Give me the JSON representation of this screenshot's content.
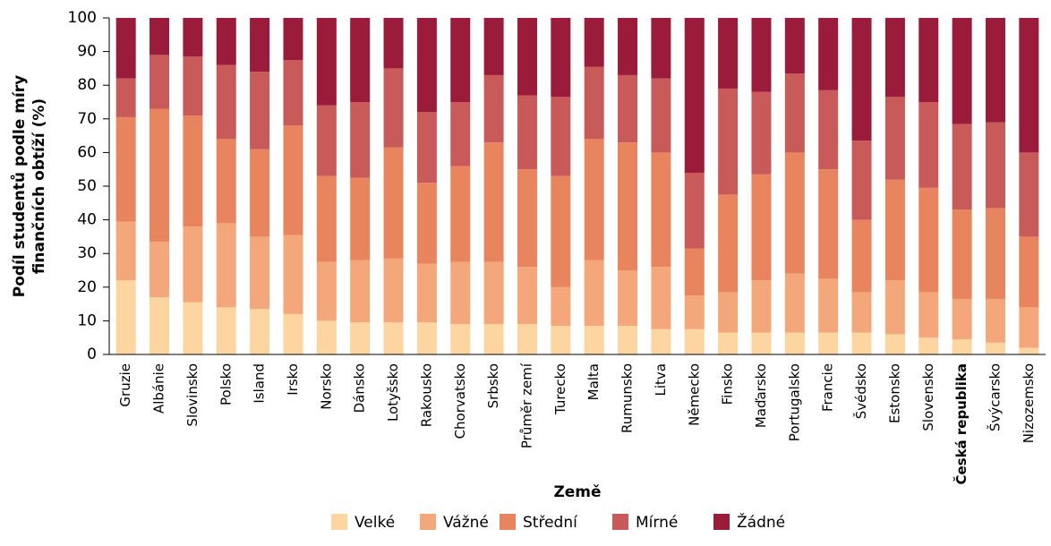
{
  "chart_data": {
    "type": "stacked_bar",
    "ylabel": [
      "Podíl studentů podle míry",
      "finančních obtíží (%)"
    ],
    "xlabel": "Země",
    "categories": [
      "Gruzie",
      "Albánie",
      "Slovinsko",
      "Polsko",
      "Island",
      "Irsko",
      "Norsko",
      "Dánsko",
      "Lotyšsko",
      "Rakousko",
      "Chorvatsko",
      "Srbsko",
      "Průměr zemí",
      "Turecko",
      "Malta",
      "Rumunsko",
      "Litva",
      "Německo",
      "Finsko",
      "Maďarsko",
      "Portugalsko",
      "Francie",
      "Švédsko",
      "Estonsko",
      "Slovensko",
      "Česká republika",
      "Švýcarsko",
      "Nizozemsko"
    ],
    "highlight": "Česká republika",
    "series": [
      {
        "name": "Velké",
        "color": "#fdd5a0",
        "values": [
          22,
          17,
          15.5,
          14,
          13.5,
          12,
          10,
          9.5,
          9.5,
          9.5,
          9,
          9,
          9,
          8.5,
          8.5,
          8.5,
          7.5,
          7.5,
          6.5,
          6.5,
          6.5,
          6.5,
          6.5,
          6,
          5,
          4.5,
          3.5,
          2
        ]
      },
      {
        "name": "Vážné",
        "color": "#f4a77a",
        "values": [
          17.5,
          16.5,
          22.5,
          25,
          21.5,
          23.5,
          17.5,
          18.5,
          19,
          17.5,
          18.5,
          18.5,
          17,
          11.5,
          19.5,
          16.5,
          18.5,
          10,
          12,
          15.5,
          17.5,
          16,
          12,
          16,
          13.5,
          12,
          13,
          12
        ]
      },
      {
        "name": "Střední",
        "color": "#e8845e",
        "values": [
          31,
          39.5,
          33,
          25,
          26,
          32.5,
          25.5,
          24.5,
          33,
          24,
          28.5,
          35.5,
          29,
          33,
          36,
          38,
          34,
          14,
          29,
          31.5,
          36,
          32.5,
          21.5,
          30,
          31,
          26.5,
          27,
          21
        ]
      },
      {
        "name": "Mírné",
        "color": "#c85a5a",
        "values": [
          11.5,
          16,
          17.5,
          22,
          23,
          19.5,
          21,
          22.5,
          23.5,
          21,
          19,
          20,
          22,
          23.5,
          21.5,
          20,
          22,
          22.5,
          31.5,
          24.5,
          23.5,
          23.5,
          23.5,
          24.5,
          25.5,
          25.5,
          25.5,
          25
        ]
      },
      {
        "name": "Žádné",
        "color": "#9b1b3a",
        "values": [
          18,
          11,
          11.5,
          14,
          16,
          12.5,
          26,
          25,
          15,
          28,
          25,
          17,
          23,
          23.5,
          14.5,
          17,
          18,
          46,
          21,
          22,
          16.5,
          21.5,
          36.5,
          23.5,
          25,
          31.5,
          31,
          40
        ]
      }
    ],
    "ylim": [
      0,
      100
    ],
    "yticks": [
      0,
      10,
      20,
      30,
      40,
      50,
      60,
      70,
      80,
      90,
      100
    ],
    "grid": false
  }
}
